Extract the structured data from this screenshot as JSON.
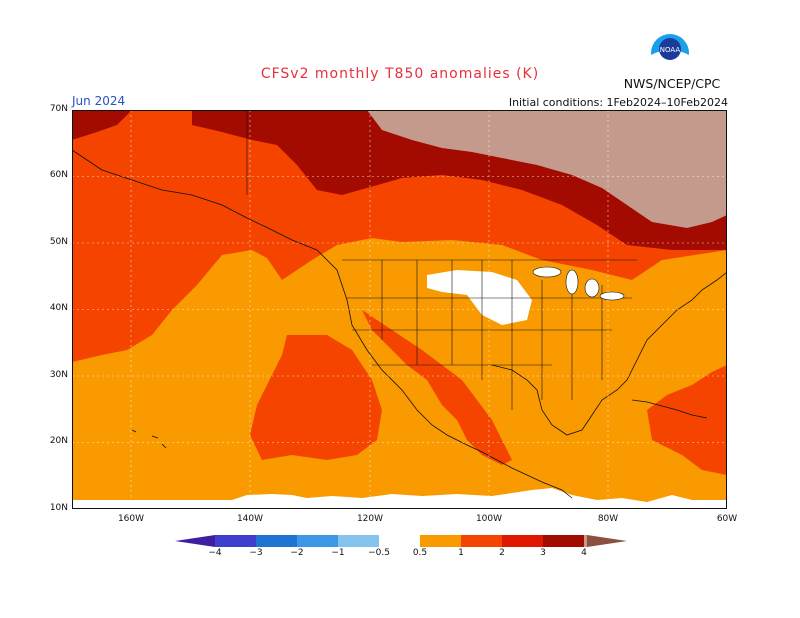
{
  "title": "CFSv2 monthly T850 anomalies (K)",
  "agency": "NWS/NCEP/CPC",
  "logo_text": "NOAA",
  "valid_month": "Jun 2024",
  "initial_conditions": "Initial conditions: 1Feb2024–10Feb2024",
  "map": {
    "lat_labels": [
      "70N",
      "60N",
      "50N",
      "40N",
      "30N",
      "20N",
      "10N"
    ],
    "lon_labels": [
      "160W",
      "140W",
      "120W",
      "100W",
      "80W",
      "60W"
    ],
    "grid": true
  },
  "colorbar": {
    "labels": [
      "−4",
      "−3",
      "−2",
      "−1",
      "−0.5",
      "0.5",
      "1",
      "2",
      "3",
      "4"
    ],
    "colors": [
      "#3e1fa0",
      "#3f3fcf",
      "#1f73d2",
      "#3c97e6",
      "#86c3ee",
      "#ffffff",
      "#f89a00",
      "#f54400",
      "#e01800",
      "#a30a00",
      "#c49a8c",
      "#8a5040"
    ]
  },
  "colors": {
    "orange": "#f89a00",
    "red_orange": "#f54400",
    "red": "#e01800",
    "dark_red": "#a30a00",
    "tan": "#c49a8c",
    "white": "#ffffff",
    "title_red": "#e8303a",
    "month_blue": "#2850c8"
  }
}
